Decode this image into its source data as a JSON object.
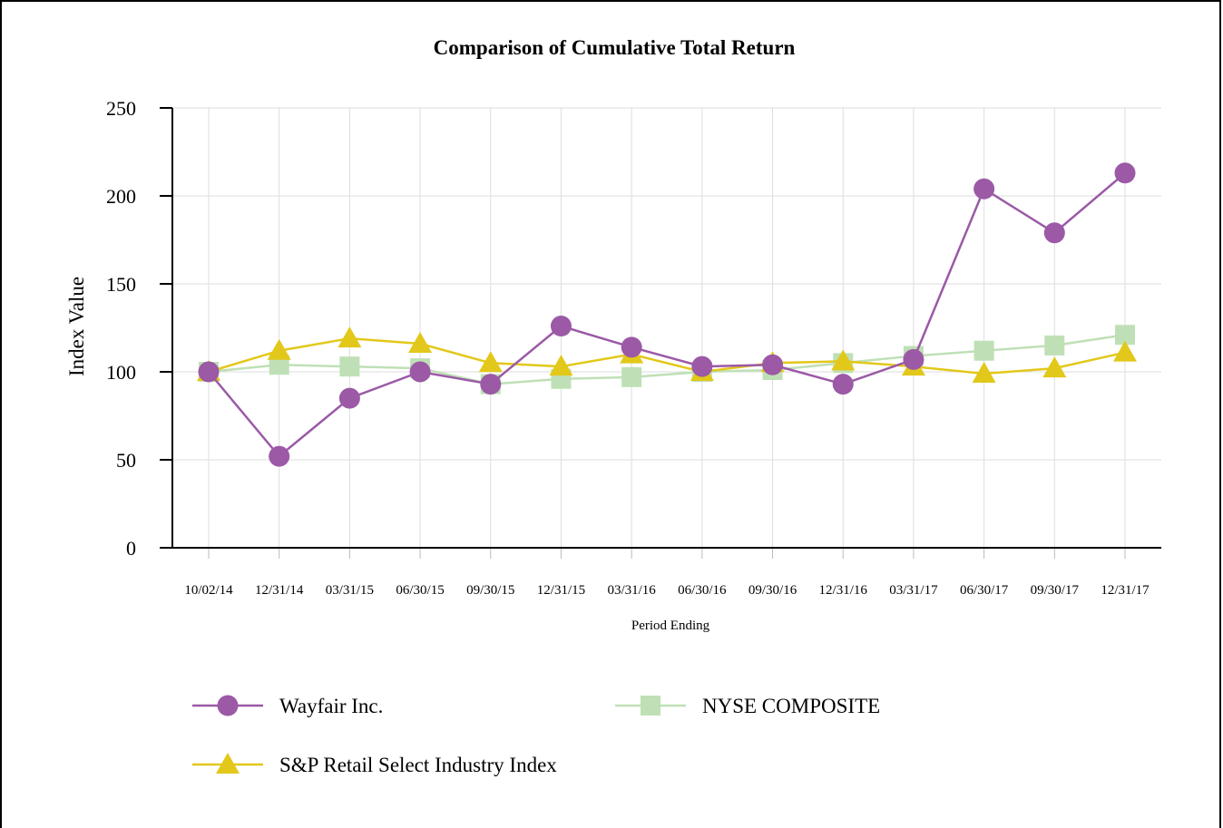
{
  "chart_data": {
    "type": "line",
    "title": "Comparison of Cumulative Total Return",
    "xlabel": "Period Ending",
    "ylabel": "Index Value",
    "ylim": [
      0,
      250
    ],
    "yticks": [
      "0",
      "50",
      "100",
      "150",
      "200",
      "250"
    ],
    "grid": true,
    "legend_position": "bottom",
    "categories": [
      "10/02/14",
      "12/31/14",
      "03/31/15",
      "06/30/15",
      "09/30/15",
      "12/31/15",
      "03/31/16",
      "06/30/16",
      "09/30/16",
      "12/31/16",
      "03/31/17",
      "06/30/17",
      "09/30/17",
      "12/31/17"
    ],
    "series": [
      {
        "name": "Wayfair Inc.",
        "color": "#9b59a6",
        "marker": "circle",
        "values": [
          100,
          52,
          85,
          100,
          93,
          126,
          114,
          103,
          104,
          93,
          107,
          204,
          179,
          213
        ]
      },
      {
        "name": "NYSE COMPOSITE",
        "color": "#bfe0b6",
        "marker": "square",
        "values": [
          100,
          104,
          103,
          102,
          93,
          96,
          97,
          100,
          101,
          105,
          109,
          112,
          115,
          121
        ]
      },
      {
        "name": "S&P Retail Select Industry Index",
        "color": "#e2c81a",
        "marker": "triangle",
        "values": [
          100,
          112,
          119,
          116,
          105,
          103,
          110,
          100,
          105,
          106,
          103,
          99,
          102,
          111
        ]
      }
    ]
  }
}
